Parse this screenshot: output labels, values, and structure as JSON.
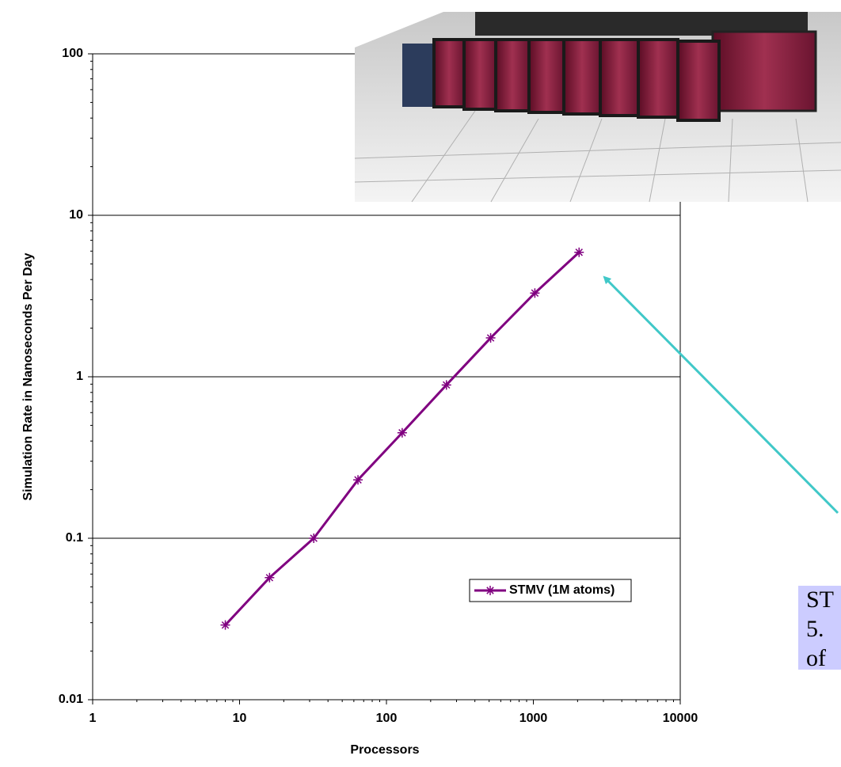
{
  "chart_data": {
    "type": "line",
    "x": [
      8,
      16,
      32,
      64,
      128,
      256,
      512,
      1024,
      2048
    ],
    "series": [
      {
        "name": "STMV (1M atoms)",
        "color": "#800080",
        "values": [
          0.029,
          0.057,
          0.1,
          0.23,
          0.45,
          0.89,
          1.74,
          3.3,
          5.9
        ]
      }
    ],
    "xlim": [
      1,
      10000
    ],
    "ylim": [
      0.01,
      100
    ],
    "xticks": [
      1,
      10,
      100,
      1000,
      10000
    ],
    "yticks": [
      0.01,
      0.1,
      1,
      10,
      100
    ],
    "xscale": "log",
    "yscale": "log",
    "grid": true,
    "legend": "lower right",
    "xlabel": "Processors",
    "ylabel": "Simulation Rate in Nanoseconds Per Day"
  },
  "annotation": {
    "lines": [
      "ST",
      "5.",
      "of"
    ]
  }
}
